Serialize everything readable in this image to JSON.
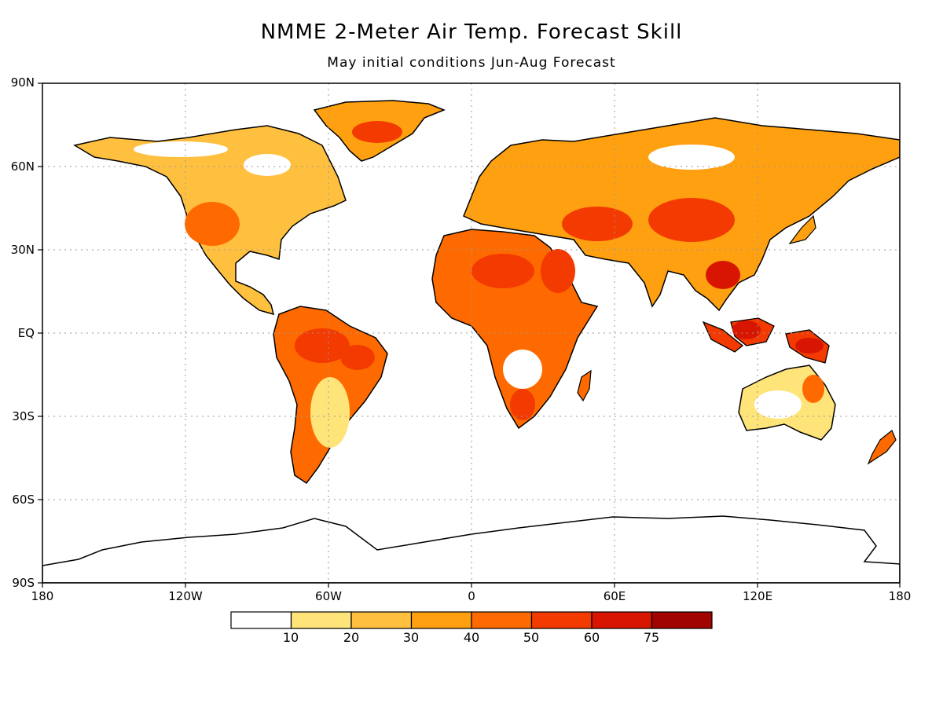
{
  "title": "NMME 2-Meter Air Temp. Forecast Skill",
  "subtitle": "May initial conditions   Jun-Aug Forecast",
  "lat_labels": [
    "90N",
    "60N",
    "30N",
    "EQ",
    "30S",
    "60S",
    "90S"
  ],
  "lon_labels": [
    "180",
    "120W",
    "60W",
    "0",
    "60E",
    "120E",
    "180"
  ],
  "colorbar": {
    "colors": [
      "#ffffff",
      "#ffe47a",
      "#ffc040",
      "#ffa010",
      "#ff6a00",
      "#f33a00",
      "#d81500",
      "#a10400"
    ],
    "labels": [
      "10",
      "20",
      "30",
      "40",
      "50",
      "60",
      "75"
    ]
  }
}
